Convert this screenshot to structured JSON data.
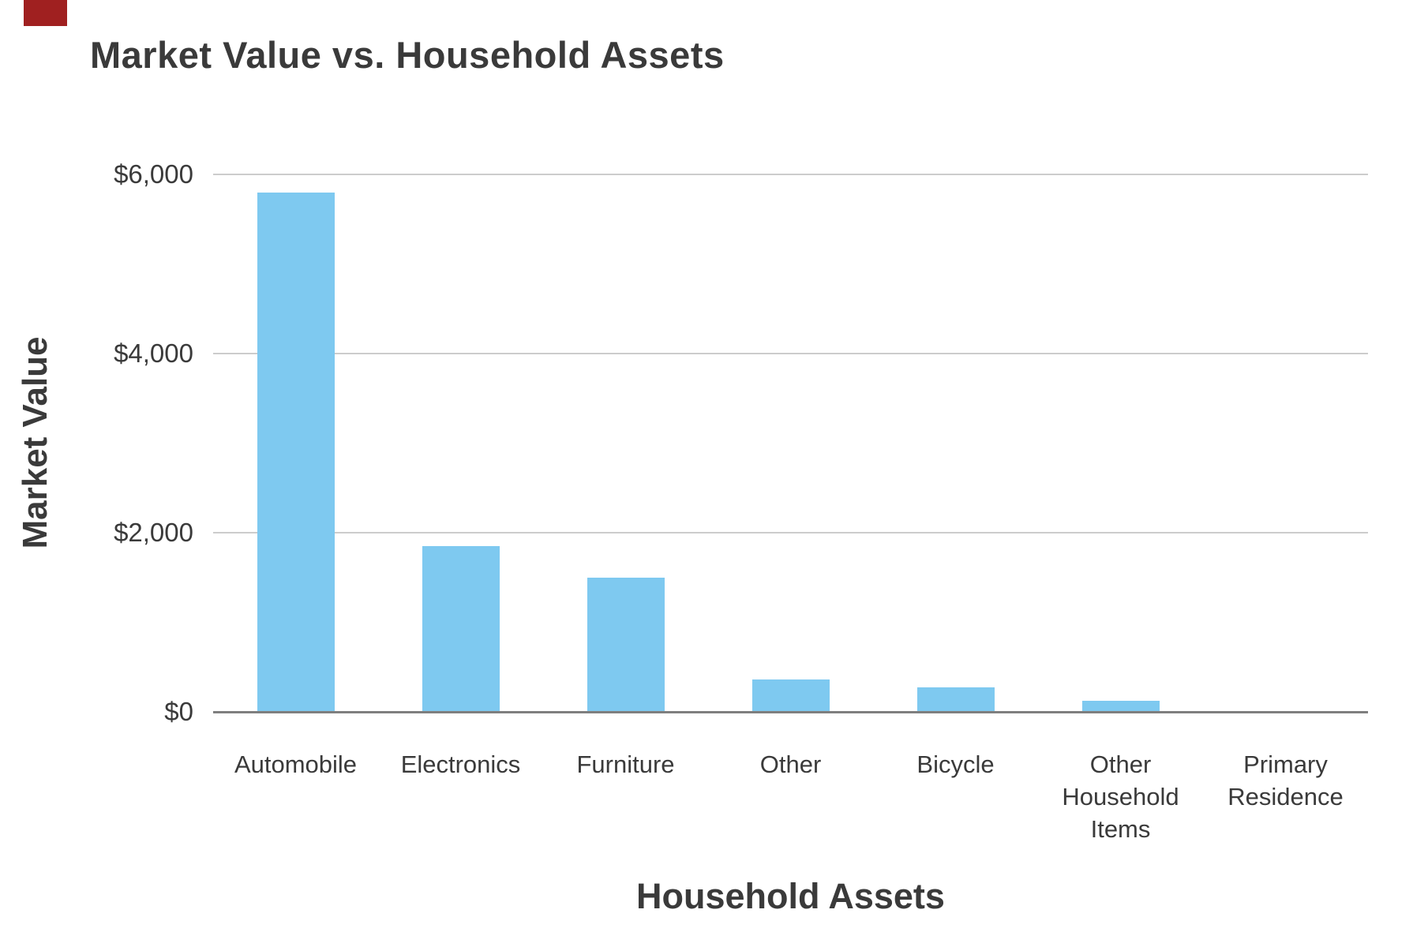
{
  "corner_marker": {
    "color": "#a02020"
  },
  "chart_data": {
    "type": "bar",
    "title": "Market Value vs. Household Assets",
    "xlabel": "Household Assets",
    "ylabel": "Market Value",
    "categories": [
      "Automobile",
      "Electronics",
      "Furniture",
      "Other",
      "Bicycle",
      "Other Household Items",
      "Primary Residence"
    ],
    "values": [
      5800,
      1850,
      1500,
      360,
      275,
      125,
      0
    ],
    "ylim": [
      0,
      6000
    ],
    "y_ticks": [
      {
        "label": "$6,000",
        "value": 6000
      },
      {
        "label": "$4,000",
        "value": 4000
      },
      {
        "label": "$2,000",
        "value": 2000
      },
      {
        "label": "$0",
        "value": 0
      }
    ],
    "grid": true,
    "legend": "none",
    "bar_color": "#7ec9f0",
    "gridline_color": "#cccccc",
    "axis_line_color": "#7f7f7f",
    "text_color": "#3a3a3a"
  }
}
